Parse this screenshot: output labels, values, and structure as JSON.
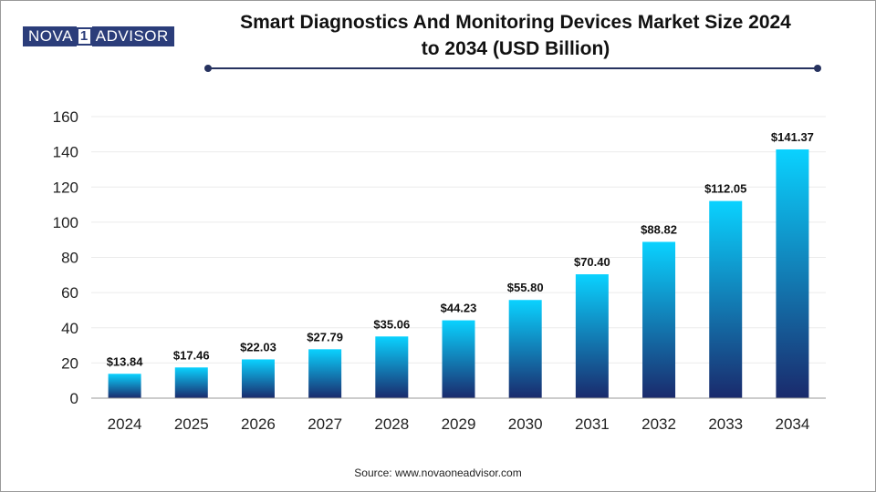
{
  "brand": {
    "logo_part1": "NOVA",
    "logo_num": "1",
    "logo_part2": "ADVISOR"
  },
  "header": {
    "title_line1": "Smart Diagnostics And Monitoring Devices Market Size 2024",
    "title_line2": "to 2034 (USD Billion)"
  },
  "footer": {
    "source": "Source: www.novaoneadvisor.com"
  },
  "colors": {
    "bar_top": "#0ad2ff",
    "bar_bottom": "#1a2a6c",
    "axis": "#999999",
    "brand": "#2b3d7a"
  },
  "chart_data": {
    "type": "bar",
    "title": "Smart Diagnostics And Monitoring Devices Market Size 2024 to 2034 (USD Billion)",
    "categories": [
      "2024",
      "2025",
      "2026",
      "2027",
      "2028",
      "2029",
      "2030",
      "2031",
      "2032",
      "2033",
      "2034"
    ],
    "values": [
      13.84,
      17.46,
      22.03,
      27.79,
      35.06,
      44.23,
      55.8,
      70.4,
      88.82,
      112.05,
      141.37
    ],
    "data_labels": [
      "$13.84",
      "$17.46",
      "$22.03",
      "$27.79",
      "$35.06",
      "$44.23",
      "$55.80",
      "$70.40",
      "$88.82",
      "$112.05",
      "$141.37"
    ],
    "ylim": [
      0,
      160
    ],
    "yticks": [
      0,
      20,
      40,
      60,
      80,
      100,
      120,
      140,
      160
    ],
    "grid": true,
    "xlabel": "",
    "ylabel": ""
  }
}
